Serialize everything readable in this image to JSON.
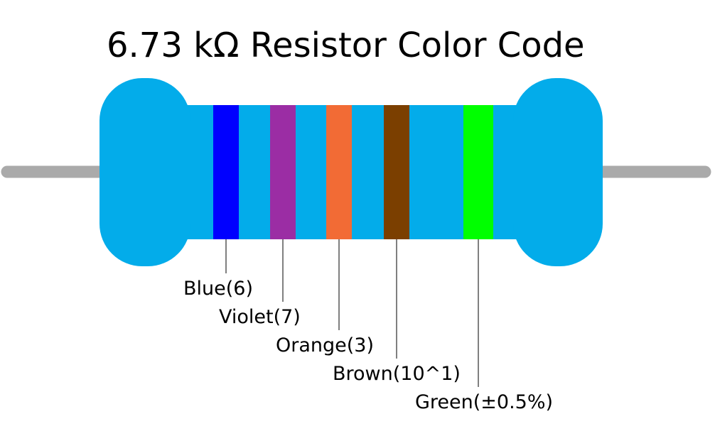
{
  "title": "6.73 kΩ Resistor Color Code",
  "body_color": "#03acea",
  "lead_color": "#aaaaaa",
  "bands": [
    {
      "label": "Blue(6)",
      "color": "#0000ff"
    },
    {
      "label": "Violet(7)",
      "color": "#9b2da4"
    },
    {
      "label": "Orange(3)",
      "color": "#f26b35"
    },
    {
      "label": "Brown(10^1)",
      "color": "#7b3f00"
    },
    {
      "label": "Green(±0.5%)",
      "color": "#00ff00"
    }
  ]
}
